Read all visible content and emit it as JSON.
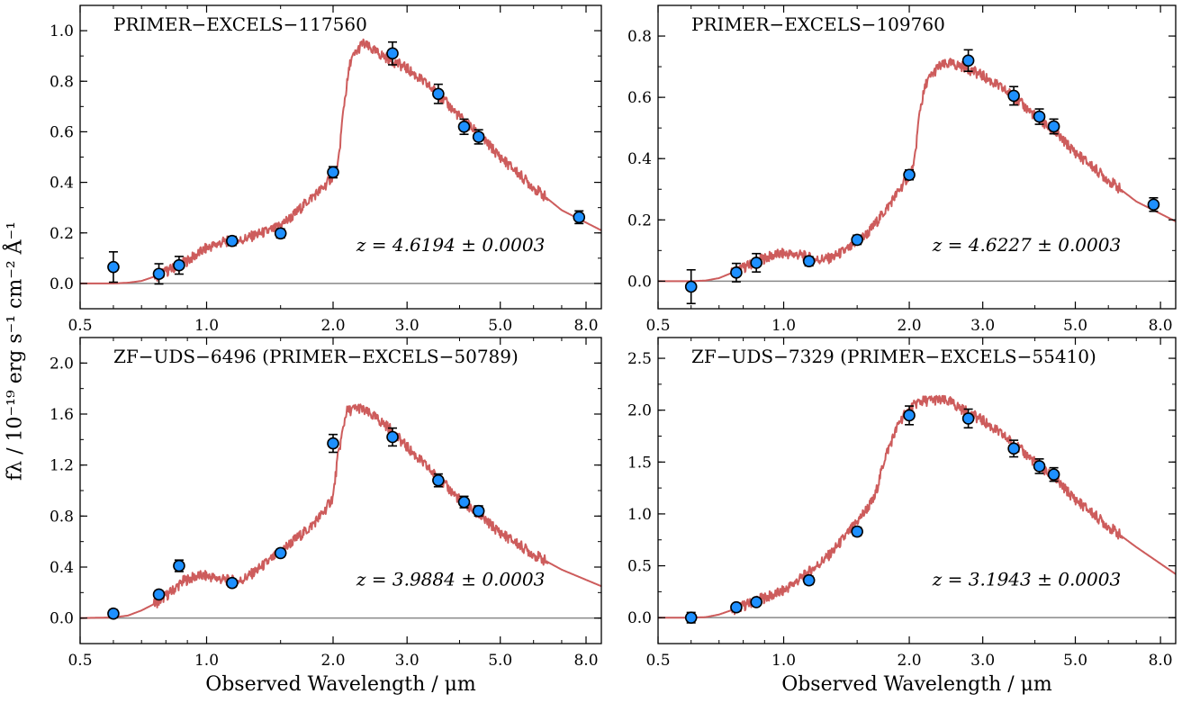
{
  "figure": {
    "ylabel": "fλ / 10⁻¹⁹ erg s⁻¹ cm⁻² Å⁻¹",
    "xlabel": "Observed Wavelength / μm"
  },
  "colors": {
    "model": "#cd5c5c",
    "points": "#1e90ff",
    "zero_line": "#888888"
  },
  "chart_data": [
    {
      "type": "scatter",
      "title": "PRIMER−EXCELS−117560",
      "annotation": "z = 4.6194 ± 0.0003",
      "xscale": "log",
      "xlim": [
        0.5,
        8.7
      ],
      "ylim": [
        -0.1,
        1.1
      ],
      "xticks": [
        0.5,
        1.0,
        2.0,
        3.0,
        5.0,
        8.0
      ],
      "xtick_labels": [
        "0.5",
        "1.0",
        "2.0",
        "3.0",
        "5.0",
        "8.0"
      ],
      "yticks": [
        0.0,
        0.2,
        0.4,
        0.6,
        0.8,
        1.0
      ],
      "ytick_labels": [
        "0.0",
        "0.2",
        "0.4",
        "0.6",
        "0.8",
        "1.0"
      ],
      "show_xlabel": false,
      "photometry": [
        {
          "x": 0.6,
          "y": 0.065,
          "err": 0.06
        },
        {
          "x": 0.77,
          "y": 0.038,
          "err": 0.04
        },
        {
          "x": 0.86,
          "y": 0.072,
          "err": 0.035
        },
        {
          "x": 1.15,
          "y": 0.168,
          "err": 0.018
        },
        {
          "x": 1.5,
          "y": 0.198,
          "err": 0.018
        },
        {
          "x": 2.0,
          "y": 0.44,
          "err": 0.022
        },
        {
          "x": 2.77,
          "y": 0.91,
          "err": 0.045
        },
        {
          "x": 3.56,
          "y": 0.75,
          "err": 0.038
        },
        {
          "x": 4.1,
          "y": 0.62,
          "err": 0.03
        },
        {
          "x": 4.44,
          "y": 0.58,
          "err": 0.028
        },
        {
          "x": 7.7,
          "y": 0.262,
          "err": 0.025
        }
      ],
      "model": {
        "x": [
          0.5,
          0.6,
          0.65,
          0.7,
          0.76,
          0.82,
          0.88,
          0.95,
          1.0,
          1.1,
          1.2,
          1.3,
          1.45,
          1.6,
          1.75,
          1.9,
          2.05,
          2.12,
          2.2,
          2.35,
          2.5,
          2.7,
          3.0,
          3.5,
          4.0,
          4.5,
          5.0,
          6.0,
          7.0,
          8.7
        ],
        "y": [
          0.0,
          0.0,
          0.003,
          0.01,
          0.03,
          0.055,
          0.08,
          0.115,
          0.14,
          0.165,
          0.17,
          0.19,
          0.215,
          0.265,
          0.33,
          0.38,
          0.45,
          0.7,
          0.88,
          0.95,
          0.92,
          0.89,
          0.85,
          0.76,
          0.66,
          0.58,
          0.5,
          0.38,
          0.29,
          0.21
        ]
      }
    },
    {
      "type": "scatter",
      "title": "PRIMER−EXCELS−109760",
      "annotation": "z = 4.6227 ± 0.0003",
      "xscale": "log",
      "xlim": [
        0.5,
        8.7
      ],
      "ylim": [
        -0.09,
        0.9
      ],
      "xticks": [
        0.5,
        1.0,
        2.0,
        3.0,
        5.0,
        8.0
      ],
      "xtick_labels": [
        "0.5",
        "1.0",
        "2.0",
        "3.0",
        "5.0",
        "8.0"
      ],
      "yticks": [
        0.0,
        0.2,
        0.4,
        0.6,
        0.8
      ],
      "ytick_labels": [
        "0.0",
        "0.2",
        "0.4",
        "0.6",
        "0.8"
      ],
      "show_xlabel": false,
      "photometry": [
        {
          "x": 0.6,
          "y": -0.018,
          "err": 0.055
        },
        {
          "x": 0.77,
          "y": 0.028,
          "err": 0.03
        },
        {
          "x": 0.86,
          "y": 0.06,
          "err": 0.03
        },
        {
          "x": 1.15,
          "y": 0.065,
          "err": 0.015
        },
        {
          "x": 1.5,
          "y": 0.135,
          "err": 0.015
        },
        {
          "x": 2.0,
          "y": 0.347,
          "err": 0.016
        },
        {
          "x": 2.77,
          "y": 0.72,
          "err": 0.035
        },
        {
          "x": 3.56,
          "y": 0.605,
          "err": 0.03
        },
        {
          "x": 4.1,
          "y": 0.537,
          "err": 0.025
        },
        {
          "x": 4.44,
          "y": 0.505,
          "err": 0.024
        },
        {
          "x": 7.7,
          "y": 0.25,
          "err": 0.022
        }
      ],
      "model": {
        "x": [
          0.5,
          0.6,
          0.65,
          0.7,
          0.76,
          0.82,
          0.88,
          0.95,
          1.0,
          1.1,
          1.2,
          1.3,
          1.45,
          1.6,
          1.75,
          1.9,
          2.05,
          2.12,
          2.2,
          2.35,
          2.5,
          2.7,
          3.0,
          3.5,
          4.0,
          4.5,
          5.0,
          6.0,
          7.0,
          8.7
        ],
        "y": [
          0.0,
          0.0,
          0.002,
          0.01,
          0.03,
          0.05,
          0.07,
          0.085,
          0.09,
          0.085,
          0.07,
          0.075,
          0.11,
          0.16,
          0.23,
          0.3,
          0.37,
          0.56,
          0.65,
          0.7,
          0.71,
          0.7,
          0.67,
          0.61,
          0.54,
          0.48,
          0.42,
          0.33,
          0.26,
          0.195
        ]
      }
    },
    {
      "type": "scatter",
      "title": "ZF−UDS−6496 (PRIMER−EXCELS−50789)",
      "annotation": "z = 3.9884 ± 0.0003",
      "xscale": "log",
      "xlim": [
        0.5,
        8.7
      ],
      "ylim": [
        -0.2,
        2.2
      ],
      "xticks": [
        0.5,
        1.0,
        2.0,
        3.0,
        5.0,
        8.0
      ],
      "xtick_labels": [
        "0.5",
        "1.0",
        "2.0",
        "3.0",
        "5.0",
        "8.0"
      ],
      "yticks": [
        0.0,
        0.4,
        0.8,
        1.2,
        1.6,
        2.0
      ],
      "ytick_labels": [
        "0.0",
        "0.4",
        "0.8",
        "1.2",
        "1.6",
        "2.0"
      ],
      "show_xlabel": true,
      "photometry": [
        {
          "x": 0.6,
          "y": 0.035,
          "err": 0.03
        },
        {
          "x": 0.77,
          "y": 0.185,
          "err": 0.03
        },
        {
          "x": 0.86,
          "y": 0.41,
          "err": 0.045
        },
        {
          "x": 1.15,
          "y": 0.275,
          "err": 0.03
        },
        {
          "x": 1.5,
          "y": 0.51,
          "err": 0.03
        },
        {
          "x": 2.0,
          "y": 1.37,
          "err": 0.07
        },
        {
          "x": 2.77,
          "y": 1.42,
          "err": 0.07
        },
        {
          "x": 3.56,
          "y": 1.08,
          "err": 0.05
        },
        {
          "x": 4.1,
          "y": 0.91,
          "err": 0.045
        },
        {
          "x": 4.44,
          "y": 0.84,
          "err": 0.04
        }
      ],
      "model": {
        "x": [
          0.5,
          0.6,
          0.65,
          0.7,
          0.76,
          0.82,
          0.88,
          0.95,
          1.0,
          1.1,
          1.2,
          1.3,
          1.45,
          1.6,
          1.75,
          1.9,
          2.0,
          2.05,
          2.15,
          2.3,
          2.5,
          2.7,
          3.0,
          3.5,
          4.0,
          4.5,
          5.0,
          6.0,
          7.0,
          8.7
        ],
        "y": [
          0.0,
          0.005,
          0.02,
          0.06,
          0.12,
          0.2,
          0.29,
          0.33,
          0.33,
          0.3,
          0.29,
          0.36,
          0.48,
          0.6,
          0.7,
          0.83,
          0.95,
          1.25,
          1.62,
          1.65,
          1.58,
          1.5,
          1.34,
          1.12,
          0.93,
          0.79,
          0.67,
          0.5,
          0.38,
          0.25
        ]
      }
    },
    {
      "type": "scatter",
      "title": "ZF−UDS−7329 (PRIMER−EXCELS−55410)",
      "annotation": "z = 3.1943 ± 0.0003",
      "xscale": "log",
      "xlim": [
        0.5,
        8.7
      ],
      "ylim": [
        -0.25,
        2.7
      ],
      "xticks": [
        0.5,
        1.0,
        2.0,
        3.0,
        5.0,
        8.0
      ],
      "xtick_labels": [
        "0.5",
        "1.0",
        "2.0",
        "3.0",
        "5.0",
        "8.0"
      ],
      "yticks": [
        0.0,
        0.5,
        1.0,
        1.5,
        2.0,
        2.5
      ],
      "ytick_labels": [
        "0.0",
        "0.5",
        "1.0",
        "1.5",
        "2.0",
        "2.5"
      ],
      "show_xlabel": true,
      "photometry": [
        {
          "x": 0.6,
          "y": 0.0,
          "err": 0.05
        },
        {
          "x": 0.77,
          "y": 0.1,
          "err": 0.03
        },
        {
          "x": 0.86,
          "y": 0.15,
          "err": 0.03
        },
        {
          "x": 1.15,
          "y": 0.36,
          "err": 0.04
        },
        {
          "x": 1.5,
          "y": 0.83,
          "err": 0.04
        },
        {
          "x": 2.0,
          "y": 1.95,
          "err": 0.09
        },
        {
          "x": 2.77,
          "y": 1.92,
          "err": 0.09
        },
        {
          "x": 3.56,
          "y": 1.63,
          "err": 0.08
        },
        {
          "x": 4.1,
          "y": 1.46,
          "err": 0.07
        },
        {
          "x": 4.44,
          "y": 1.38,
          "err": 0.065
        }
      ],
      "model": {
        "x": [
          0.5,
          0.6,
          0.65,
          0.7,
          0.76,
          0.82,
          0.88,
          0.95,
          1.0,
          1.1,
          1.2,
          1.3,
          1.45,
          1.55,
          1.65,
          1.75,
          1.9,
          2.0,
          2.1,
          2.3,
          2.5,
          2.7,
          3.0,
          3.5,
          4.0,
          4.5,
          5.0,
          6.0,
          7.0,
          8.7
        ],
        "y": [
          0.0,
          0.0,
          0.005,
          0.03,
          0.08,
          0.13,
          0.18,
          0.22,
          0.26,
          0.38,
          0.5,
          0.62,
          0.85,
          1.0,
          1.15,
          1.55,
          1.9,
          2.0,
          2.08,
          2.1,
          2.08,
          2.0,
          1.9,
          1.7,
          1.5,
          1.32,
          1.14,
          0.88,
          0.68,
          0.42
        ]
      }
    }
  ]
}
